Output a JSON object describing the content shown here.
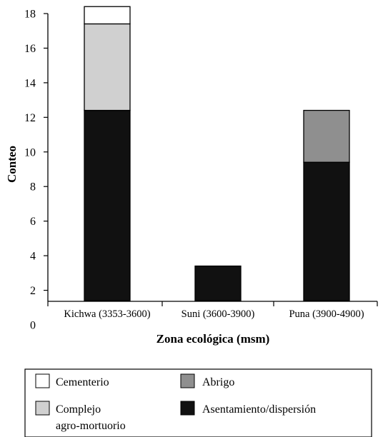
{
  "chart_data": {
    "type": "bar",
    "stacked": true,
    "xlabel": "Zona ecológica (msm)",
    "ylabel": "Conteo",
    "ylim": [
      0,
      18
    ],
    "yticks": [
      0,
      2,
      4,
      6,
      8,
      10,
      12,
      14,
      16,
      18
    ],
    "grid": false,
    "legend_position": "bottom",
    "categories": [
      "Kichwa (3353-3600)",
      "Suni (3600-3900)",
      "Puna (3900-4900)"
    ],
    "series": [
      {
        "name": "Asentamiento/dispersión",
        "color": "#111111",
        "values": [
          11,
          2,
          8
        ]
      },
      {
        "name": "Complejo agro-mortuorio",
        "color": "#d0d0d0",
        "values": [
          5,
          0,
          0
        ]
      },
      {
        "name": "Abrigo",
        "color": "#8f8f8f",
        "values": [
          0,
          0,
          3
        ]
      },
      {
        "name": "Cementerio",
        "color": "#ffffff",
        "values": [
          1,
          0,
          0
        ]
      }
    ],
    "legend": {
      "items": [
        {
          "label_lines": [
            "Cementerio"
          ],
          "color": "#ffffff"
        },
        {
          "label_lines": [
            "Abrigo"
          ],
          "color": "#8f8f8f"
        },
        {
          "label_lines": [
            "Complejo",
            "agro-mortuorio"
          ],
          "color": "#d0d0d0"
        },
        {
          "label_lines": [
            "Asentamiento/dispersión"
          ],
          "color": "#111111"
        }
      ]
    }
  }
}
